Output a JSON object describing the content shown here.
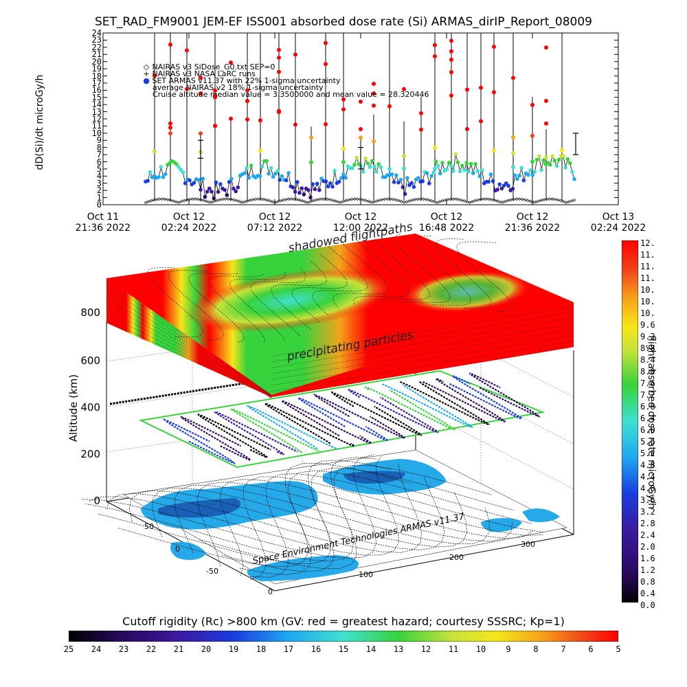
{
  "title": "SET_RAD_FM9001  JEM-EF ISS001 absorbed dose rate (Si) ARMAS_dirIP_Report_08009",
  "chart_data": [
    {
      "type": "scatter",
      "ylabel": "dD(Si)/dt microGy/h",
      "ylim": [
        0,
        24
      ],
      "yticks": [
        "0",
        "1",
        "2",
        "3",
        "4",
        "5",
        "6",
        "7",
        "8",
        "9",
        "10",
        "11",
        "12",
        "13",
        "14",
        "15",
        "16",
        "17",
        "18",
        "19",
        "20",
        "21",
        "22",
        "23",
        "24"
      ],
      "xticks": [
        {
          "line1": "Oct 11",
          "line2": "21:36 2022"
        },
        {
          "line1": "Oct 12",
          "line2": "02:24 2022"
        },
        {
          "line1": "Oct 12",
          "line2": "07:12 2022"
        },
        {
          "line1": "Oct 12",
          "line2": "12:00 2022"
        },
        {
          "line1": "Oct 12",
          "line2": "16:48 2022"
        },
        {
          "line1": "Oct 12",
          "line2": "21:36 2022"
        },
        {
          "line1": "Oct 13",
          "line2": "02:24 2022"
        }
      ],
      "legend": [
        {
          "marker": "◇",
          "text": "NAIRAS v3 SiDose_G0.txt SEP=0",
          "color": "#000000"
        },
        {
          "marker": "+",
          "text": "NAIRAS v3 NASA LaRC runs",
          "color": "#000000"
        },
        {
          "marker": "●",
          "text": "SET ARMAS v11.37 with 22% 1-sigma uncertainty",
          "color": "#1a3ce0"
        },
        {
          "marker": "",
          "text": "average NAIRAS v2 18% 1-sigma uncertainty",
          "color": "#000000"
        },
        {
          "marker": "",
          "text": "Cruise altitude median value = 3.3500000 and mean value = 28.320446",
          "color": "#000000"
        }
      ],
      "series": [
        {
          "name": "SET ARMAS v11.37 with 22% 1-sigma uncertainty",
          "baseline_range": [
            1,
            7
          ],
          "spike_max": 24,
          "color_scale": "dose"
        },
        {
          "name": "NAIRAS v3 SiDose_G0.txt SEP=0",
          "values_range": [
            0,
            1
          ]
        }
      ],
      "median": 3.35,
      "mean": 28.320446
    },
    {
      "type": "heatmap",
      "zlabel": "Altitude (km)",
      "zticks": [
        "0",
        "200",
        "400",
        "600",
        "800"
      ],
      "xticks": [
        "0",
        "100",
        "200",
        "300"
      ],
      "yticks": [
        "-50",
        "0",
        "50"
      ],
      "annotations": [
        "shadowed flightpaths",
        "precipitating particles"
      ],
      "credit": "Space Environment Technologies ARMAS v11.37"
    }
  ],
  "colorbar_right": {
    "title": "flight absorbed dose rate microGy/h",
    "labels": [
      "12.",
      "11.",
      "11.",
      "11.",
      "10.",
      "10.",
      "10.",
      "9.6",
      "9.2",
      "8.8",
      "8.4",
      "8.0",
      "7.6",
      "7.2",
      "6.8",
      "6.4",
      "6.0",
      "5.6",
      "5.2",
      "4.8",
      "4.4",
      "4.0",
      "3.6",
      "3.2",
      "2.8",
      "2.4",
      "2.0",
      "1.6",
      "1.2",
      "0.8",
      "0.4",
      "0.0"
    ]
  },
  "colorbar_bottom": {
    "title": "Cutoff rigidity (Rc) >800 km (GV: red = greatest hazard; courtesy SSSRC; Kp=1)",
    "labels": [
      "25",
      "24",
      "23",
      "22",
      "21",
      "20",
      "19",
      "18",
      "17",
      "16",
      "15",
      "14",
      "13",
      "12",
      "11",
      "10",
      "9",
      "8",
      "7",
      "6",
      "5"
    ]
  },
  "colors": {
    "arms_points": [
      "#000000",
      "#2a0a5e",
      "#3b1aa0",
      "#1a3ce0",
      "#1fa7f0",
      "#3fe0d0",
      "#38d23c",
      "#c8e23a",
      "#f5e61a",
      "#f5a21a",
      "#f0421a",
      "#ff0000"
    ]
  }
}
